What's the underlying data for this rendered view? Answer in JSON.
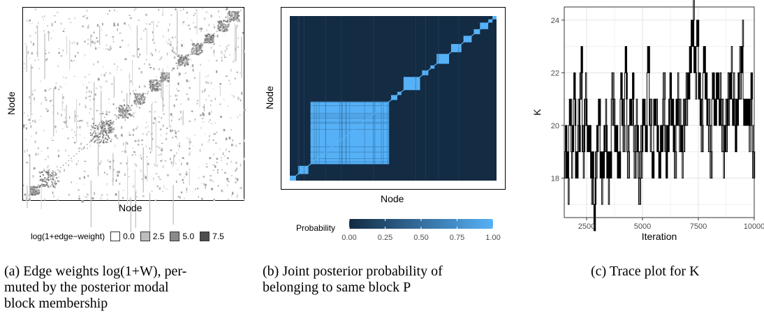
{
  "panel_a": {
    "xlabel": "Node",
    "ylabel": "Node",
    "legend_title": "log(1+edge−weight)",
    "legend_items": [
      {
        "label": "0.0",
        "color": "#ffffff"
      },
      {
        "label": "2.5",
        "color": "#bdbdbd"
      },
      {
        "label": "5.0",
        "color": "#8a8a8a"
      },
      {
        "label": "7.5",
        "color": "#4d4d4d"
      }
    ],
    "caption_line1": "(a) Edge weights log(1+W), per-",
    "caption_line2": "muted by the posterior modal",
    "caption_line3": "block membership"
  },
  "panel_b": {
    "xlabel": "Node",
    "ylabel": "Node",
    "legend_title": "Probability",
    "colorbar_low": "#132b43",
    "colorbar_high": "#56b1f7",
    "colorbar_ticks": [
      "0.00",
      "0.25",
      "0.50",
      "0.75",
      "1.00"
    ],
    "caption_line1": "(b) Joint posterior probability of",
    "caption_line2": "belonging to same block P"
  },
  "panel_c": {
    "caption": "(c) Trace plot for K"
  },
  "chart_data": [
    {
      "type": "heatmap",
      "xlabel": "Node",
      "ylabel": "Node",
      "legend_title": "log(1+edge−weight)",
      "legend_values": [
        0.0,
        2.5,
        5.0,
        7.5
      ],
      "colors": {
        "low": "#ffffff",
        "high": "#4d4d4d"
      }
    },
    {
      "type": "heatmap",
      "xlabel": "Node",
      "ylabel": "Node",
      "legend_title": "Probability",
      "colorbar_range": [
        0,
        1
      ],
      "colorbar_ticks": [
        0.0,
        0.25,
        0.5,
        0.75,
        1.0
      ],
      "colors": {
        "low": "#132b43",
        "high": "#56b1f7"
      }
    },
    {
      "type": "line",
      "xlabel": "Iteration",
      "ylabel": "K",
      "xlim": [
        1500,
        10000
      ],
      "ylim": [
        16.5,
        24.5
      ],
      "xticks": [
        2500,
        5000,
        7500,
        10000
      ],
      "yticks": [
        18,
        20,
        22,
        24
      ],
      "grid": true,
      "x": [
        1500,
        1600,
        1700,
        1800,
        1900,
        2000,
        2100,
        2200,
        2300,
        2400,
        2500,
        2600,
        2700,
        2800,
        2900,
        3000,
        3100,
        3200,
        3300,
        3400,
        3500,
        3600,
        3700,
        3800,
        3900,
        4000,
        4100,
        4200,
        4300,
        4400,
        4500,
        4600,
        4700,
        4800,
        4900,
        5000,
        5100,
        5200,
        5300,
        5400,
        5500,
        5600,
        5700,
        5800,
        5900,
        6000,
        6100,
        6200,
        6300,
        6400,
        6500,
        6600,
        6700,
        6800,
        6900,
        7000,
        7100,
        7200,
        7300,
        7400,
        7500,
        7600,
        7700,
        7800,
        7900,
        8000,
        8100,
        8200,
        8300,
        8400,
        8500,
        8600,
        8700,
        8800,
        8900,
        9000,
        9100,
        9200,
        9300,
        9400,
        9500,
        9600,
        9700,
        9800,
        9900,
        10000
      ],
      "y": [
        19,
        18,
        20,
        19,
        21,
        18,
        20,
        22,
        19,
        21,
        20,
        19,
        18,
        17,
        19,
        20,
        18,
        19,
        20,
        18,
        19,
        21,
        20,
        19,
        18,
        21,
        20,
        22,
        19,
        20,
        21,
        19,
        20,
        18,
        19,
        21,
        20,
        22,
        20,
        19,
        21,
        20,
        19,
        20,
        21,
        19,
        20,
        21,
        20,
        19,
        21,
        20,
        19,
        20,
        21,
        22,
        23,
        24,
        22,
        23,
        21,
        20,
        22,
        21,
        20,
        19,
        21,
        20,
        22,
        21,
        20,
        19,
        20,
        21,
        22,
        21,
        20,
        21,
        22,
        23,
        21,
        20,
        20,
        21,
        19,
        20
      ]
    }
  ]
}
